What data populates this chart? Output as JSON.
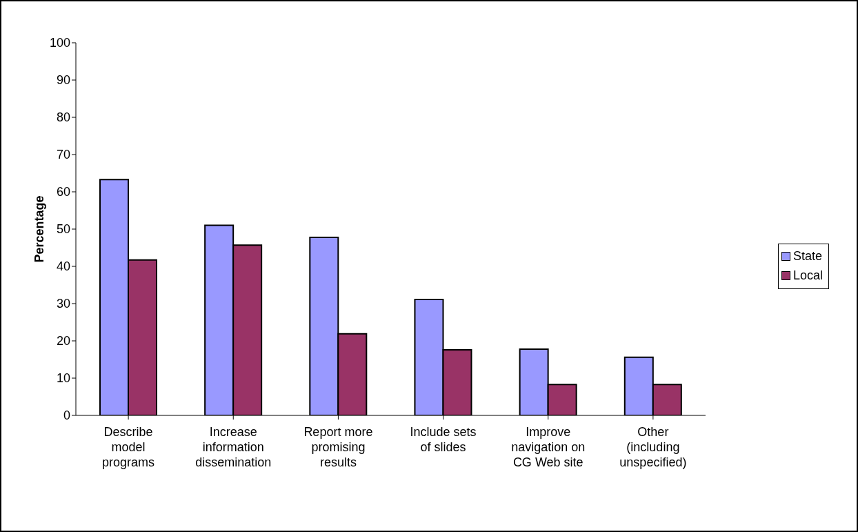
{
  "chart_data": {
    "type": "bar",
    "ylabel": "Percentage",
    "categories": [
      "Describe model programs",
      "Increase information dissemination",
      "Report more promising results",
      "Include sets of slides",
      "Improve navigation on CG Web site",
      "Other (including unspecified)"
    ],
    "series": [
      {
        "name": "State",
        "color": "#9999ff",
        "values": [
          63.3,
          51.0,
          47.8,
          31.1,
          17.8,
          15.6
        ]
      },
      {
        "name": "Local",
        "color": "#993366",
        "values": [
          41.7,
          45.7,
          21.9,
          17.6,
          8.3,
          8.3
        ]
      }
    ],
    "ylim": [
      0,
      100
    ],
    "yticks": [
      0,
      10,
      20,
      30,
      40,
      50,
      60,
      70,
      80,
      90,
      100
    ],
    "grid": false,
    "legend": "right"
  }
}
